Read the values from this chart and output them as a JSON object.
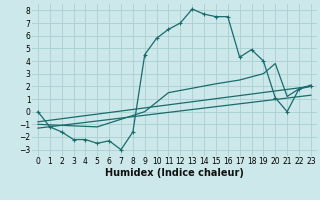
{
  "title": "",
  "xlabel": "Humidex (Indice chaleur)",
  "bg_color": "#cce8ea",
  "grid_color": "#aacfd2",
  "line_color": "#1a6b6b",
  "xlim": [
    -0.5,
    23.5
  ],
  "ylim": [
    -3.5,
    8.5
  ],
  "xticks": [
    0,
    1,
    2,
    3,
    4,
    5,
    6,
    7,
    8,
    9,
    10,
    11,
    12,
    13,
    14,
    15,
    16,
    17,
    18,
    19,
    20,
    21,
    22,
    23
  ],
  "yticks": [
    -3,
    -2,
    -1,
    0,
    1,
    2,
    3,
    4,
    5,
    6,
    7,
    8
  ],
  "main_line_x": [
    0,
    1,
    2,
    3,
    4,
    5,
    6,
    7,
    8,
    9,
    10,
    11,
    12,
    13,
    14,
    15,
    16,
    17,
    18,
    19,
    20,
    21,
    22,
    23
  ],
  "main_line_y": [
    0.0,
    -1.2,
    -1.6,
    -2.2,
    -2.2,
    -2.5,
    -2.3,
    -3.0,
    -1.6,
    4.5,
    5.8,
    6.5,
    7.0,
    8.1,
    7.7,
    7.5,
    7.5,
    4.3,
    4.9,
    4.0,
    1.1,
    0.0,
    1.8,
    2.0
  ],
  "trend1_x": [
    0,
    23
  ],
  "trend1_y": [
    -1.3,
    1.3
  ],
  "trend2_x": [
    0,
    23
  ],
  "trend2_y": [
    -0.8,
    2.0
  ],
  "trend3_x": [
    0,
    5,
    9,
    11,
    15,
    17,
    19,
    20,
    21,
    22,
    23
  ],
  "trend3_y": [
    -1.0,
    -1.2,
    0.0,
    1.5,
    2.2,
    2.5,
    3.0,
    3.8,
    1.2,
    1.8,
    2.1
  ]
}
